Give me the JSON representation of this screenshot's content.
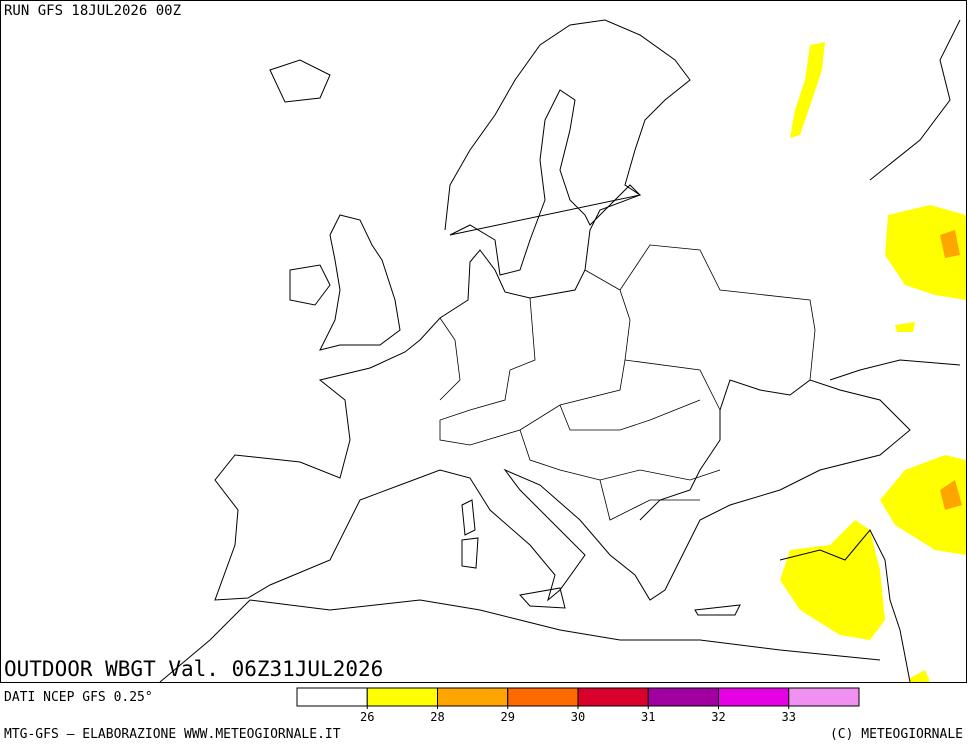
{
  "header": {
    "run": "RUN GFS 18JUL2026 00Z"
  },
  "map": {
    "title": "OUTDOOR WBGT Val. 06Z31JUL2026"
  },
  "source": "DATI NCEP GFS 0.25°",
  "legend": {
    "colors": [
      "#ffffff",
      "#ffff00",
      "#ffa500",
      "#ff6a00",
      "#d9002b",
      "#a0009f",
      "#e600e6",
      "#f090f0"
    ],
    "thresholds": [
      26,
      28,
      29,
      30,
      31,
      32,
      33
    ]
  },
  "footer": {
    "left": "MTG-GFS — ELABORAZIONE WWW.METEOGIORNALE.IT",
    "right": "(C) METEOGIORNALE"
  }
}
